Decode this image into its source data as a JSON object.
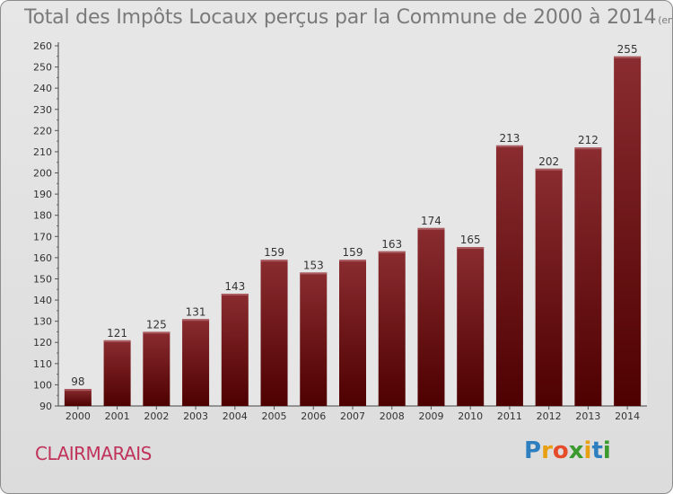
{
  "header": {
    "title": "Total des Impôts Locaux perçus par la Commune de 2000 à 2014",
    "unit": "(en milliers d'€)"
  },
  "footer": {
    "commune": "CLAIRMARAIS",
    "logo_letters": [
      "P",
      "r",
      "o",
      "x",
      "i",
      "t",
      "i"
    ],
    "logo_colors": [
      "#2e7fc0",
      "#e8a010",
      "#e64b2a",
      "#3a9a2e",
      "#e8a010",
      "#2e7fc0",
      "#3a9a2e"
    ]
  },
  "chart_data": {
    "type": "bar",
    "title": "Total des Impôts Locaux perçus par la Commune de 2000 à 2014",
    "xlabel": "",
    "ylabel": "",
    "categories": [
      "2000",
      "2001",
      "2002",
      "2003",
      "2004",
      "2005",
      "2006",
      "2007",
      "2008",
      "2009",
      "2010",
      "2011",
      "2012",
      "2013",
      "2014"
    ],
    "values": [
      98,
      121,
      125,
      131,
      143,
      159,
      153,
      159,
      163,
      174,
      165,
      213,
      202,
      212,
      255
    ],
    "ylim": [
      90,
      260
    ],
    "yticks": [
      "90",
      "100",
      "110",
      "120",
      "130",
      "140",
      "150",
      "160",
      "170",
      "180",
      "190",
      "200",
      "210",
      "220",
      "230",
      "240",
      "250",
      "260"
    ],
    "grid": false,
    "bar_color_top": "#8a2c30",
    "bar_color_bottom": "#4e0000"
  }
}
